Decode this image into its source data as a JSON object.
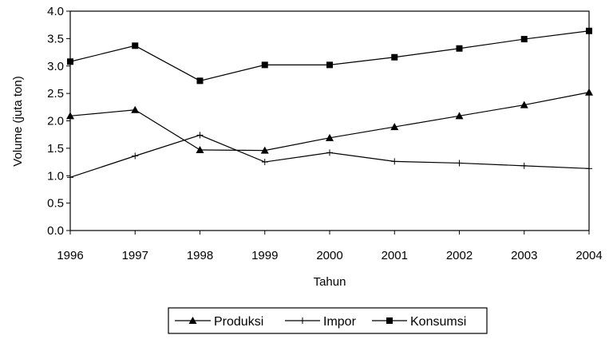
{
  "chart_data": {
    "type": "line",
    "xlabel": "Tahun",
    "ylabel": "Volume (juta ton)",
    "x": [
      "1996",
      "1997",
      "1998",
      "1999",
      "2000",
      "2001",
      "2002",
      "2003",
      "2004"
    ],
    "ylim": [
      0,
      4
    ],
    "yticks": [
      "0.0",
      "0.5",
      "1.0",
      "1.5",
      "2.0",
      "2.5",
      "3.0",
      "3.5",
      "4.0"
    ],
    "grid": false,
    "legend_position": "bottom",
    "series": [
      {
        "name": "Produksi",
        "marker": "triangle",
        "values": [
          2.09,
          2.2,
          1.47,
          1.46,
          1.69,
          1.89,
          2.09,
          2.29,
          2.52
        ]
      },
      {
        "name": "Impor",
        "marker": "plus",
        "values": [
          0.97,
          1.36,
          1.74,
          1.25,
          1.42,
          1.26,
          1.23,
          1.18,
          1.13
        ]
      },
      {
        "name": "Konsumsi",
        "marker": "square",
        "values": [
          3.08,
          3.37,
          2.73,
          3.02,
          3.02,
          3.16,
          3.32,
          3.49,
          3.64
        ]
      }
    ],
    "colors": {
      "line": "#000000",
      "background": "#ffffff"
    }
  }
}
